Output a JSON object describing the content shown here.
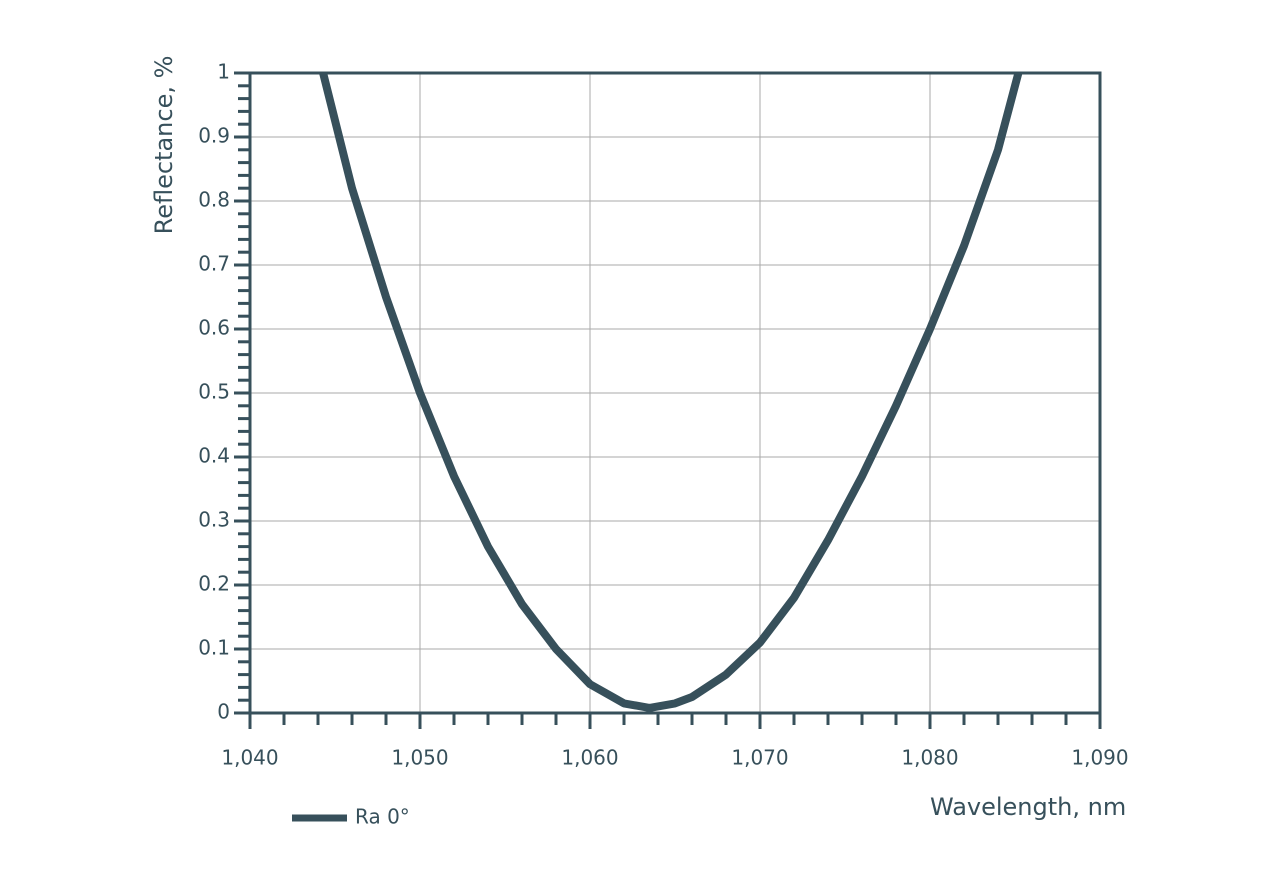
{
  "chart_data": {
    "type": "line",
    "x_label": "Wavelength, nm",
    "y_label": "Reflectance, %",
    "xlim": [
      1040,
      1090
    ],
    "ylim": [
      0,
      1
    ],
    "xticks": [
      {
        "value": 1040,
        "label": "1,040"
      },
      {
        "value": 1050,
        "label": "1,050"
      },
      {
        "value": 1060,
        "label": "1,060"
      },
      {
        "value": 1070,
        "label": "1,070"
      },
      {
        "value": 1080,
        "label": "1,080"
      },
      {
        "value": 1090,
        "label": "1,090"
      }
    ],
    "yticks": [
      0,
      0.1,
      0.2,
      0.3,
      0.4,
      0.5,
      0.6,
      0.7,
      0.8,
      0.9,
      1
    ],
    "xminorticks": [
      1042,
      1044,
      1046,
      1048,
      1052,
      1054,
      1056,
      1058,
      1062,
      1064,
      1066,
      1068,
      1072,
      1074,
      1076,
      1078,
      1082,
      1084,
      1086,
      1088
    ],
    "yminorticks": [
      0.02,
      0.04,
      0.06,
      0.08,
      0.12,
      0.14,
      0.16,
      0.18,
      0.22,
      0.24,
      0.26,
      0.28,
      0.32,
      0.34,
      0.36,
      0.38,
      0.42,
      0.44,
      0.46,
      0.48,
      0.52,
      0.54,
      0.56,
      0.58,
      0.62,
      0.64,
      0.66,
      0.68,
      0.72,
      0.74,
      0.76,
      0.78,
      0.82,
      0.84,
      0.86,
      0.88,
      0.92,
      0.94,
      0.96,
      0.98
    ],
    "grid": true,
    "legend": "bottom-left",
    "series": [
      {
        "name": "Ra 0°",
        "color": "#37505b",
        "x": [
          1044.3,
          1046,
          1048,
          1050,
          1052,
          1054,
          1056,
          1058,
          1060,
          1062,
          1063.5,
          1065,
          1066,
          1068,
          1070,
          1072,
          1074,
          1076,
          1078,
          1080,
          1082,
          1084,
          1085.2
        ],
        "values": [
          1.0,
          0.82,
          0.65,
          0.5,
          0.37,
          0.26,
          0.17,
          0.1,
          0.045,
          0.015,
          0.008,
          0.015,
          0.025,
          0.06,
          0.11,
          0.18,
          0.27,
          0.37,
          0.48,
          0.6,
          0.73,
          0.88,
          1.0
        ]
      }
    ]
  }
}
